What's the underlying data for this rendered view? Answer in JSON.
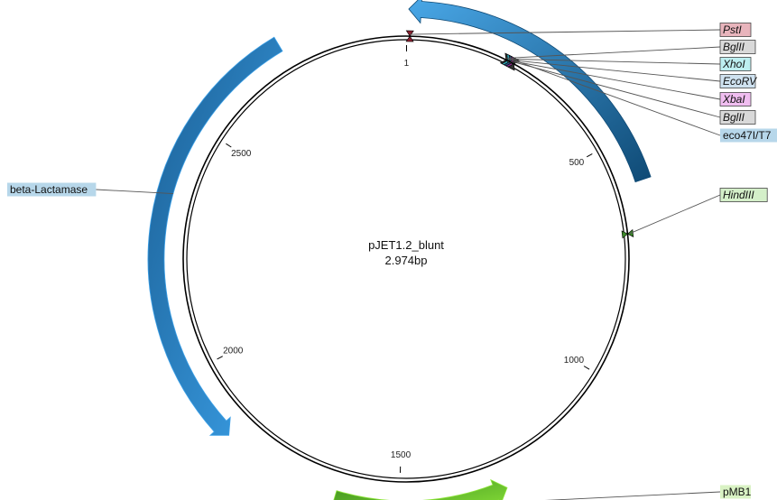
{
  "plasmid": {
    "name": "pJET1.2_blunt",
    "size": "2.974bp"
  },
  "ticks": [
    {
      "label": "1",
      "bp": 1
    },
    {
      "label": "500",
      "bp": 500
    },
    {
      "label": "1000",
      "bp": 1000
    },
    {
      "label": "1500",
      "bp": 1500
    },
    {
      "label": "2000",
      "bp": 2000
    },
    {
      "label": "2500",
      "bp": 2500
    }
  ],
  "features": [
    {
      "name": "eco47I/T7",
      "start_bp": 5,
      "end_bp": 590,
      "direction": "reverse",
      "colors": [
        "#4aa8e8",
        "#0f4a75"
      ],
      "label_color": "#b7d7ea"
    },
    {
      "name": "beta-Lactamase",
      "start_bp": 2720,
      "end_bp": 1860,
      "direction": "reverse",
      "colors": [
        "#1b5f94",
        "#3ba0e8"
      ],
      "label_color": "#b7d7ea"
    },
    {
      "name": "pMB1",
      "start_bp": 1625,
      "end_bp": 1290,
      "direction": "reverse_arrow_forward",
      "colors": [
        "#3d8f1f",
        "#8ee63a"
      ],
      "label_color": "#d9f2c4"
    }
  ],
  "sites": [
    {
      "name": "PstI",
      "bp": 8,
      "color": "#e8b4bc",
      "marker": "#8b2030"
    },
    {
      "name": "BglII",
      "bp": 220,
      "color": "#d9d9d9",
      "marker": "#333333"
    },
    {
      "name": "XhoI",
      "bp": 224,
      "color": "#bdeef0",
      "marker": "#2fa7b5"
    },
    {
      "name": "EcoRV",
      "bp": 229,
      "color": "#cfe2f0",
      "marker": "#2a4f80"
    },
    {
      "name": "XbaI",
      "bp": 234,
      "color": "#f0bdf0",
      "marker": "#8a2b8a"
    },
    {
      "name": "BglII",
      "bp": 239,
      "color": "#d9d9d9",
      "marker": "#333333"
    },
    {
      "name": "HindIII",
      "bp": 690,
      "color": "#d4efc9",
      "marker": "#3c8a2a"
    }
  ]
}
